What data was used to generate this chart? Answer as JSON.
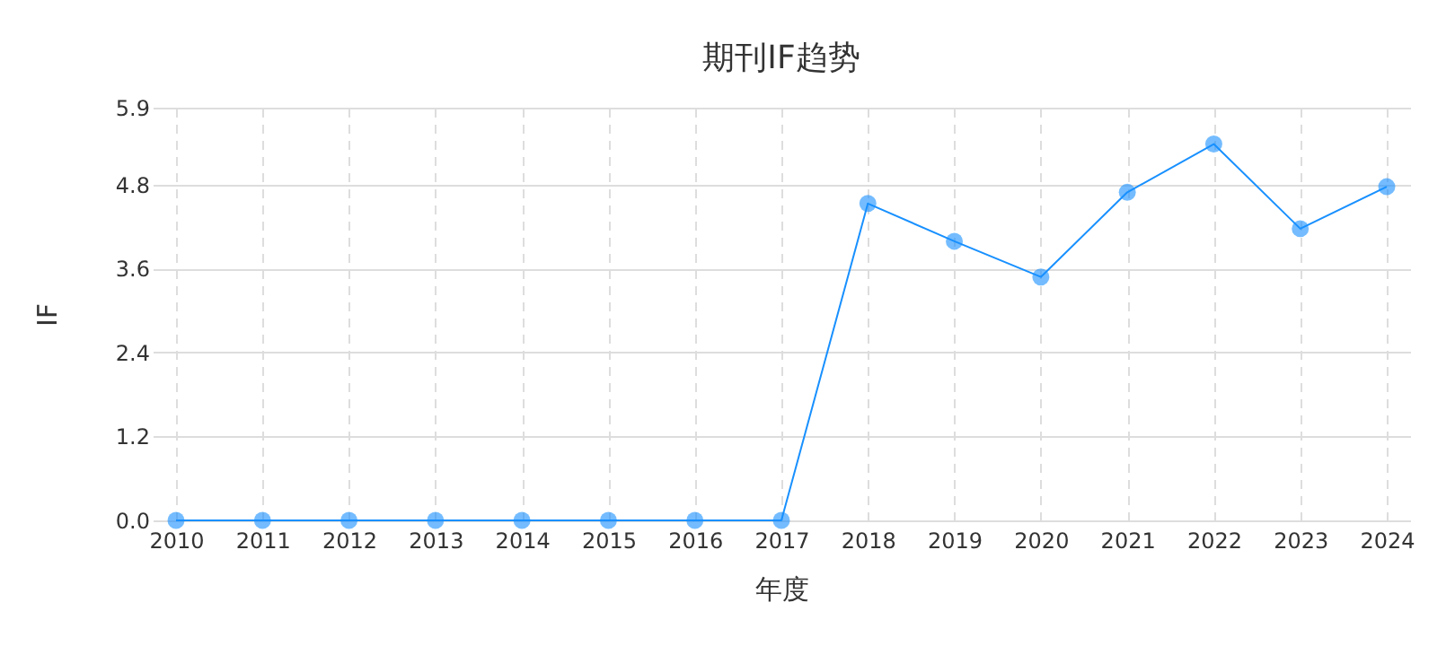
{
  "chart_data": {
    "type": "line",
    "title": "期刊IF趋势",
    "xlabel": "年度",
    "ylabel": "IF",
    "categories": [
      "2010",
      "2011",
      "2012",
      "2013",
      "2014",
      "2015",
      "2016",
      "2017",
      "2018",
      "2019",
      "2020",
      "2021",
      "2022",
      "2023",
      "2024"
    ],
    "series": [
      {
        "color": "#1890ff",
        "values": [
          0,
          0,
          0,
          0,
          0,
          0,
          0,
          0,
          4.53,
          3.99,
          3.48,
          4.69,
          5.38,
          4.17,
          4.77
        ]
      }
    ],
    "ylim": [
      0,
      5.9
    ],
    "yticks": [
      {
        "value": 0,
        "label": "0.0"
      },
      {
        "value": 1.2,
        "label": "1.2"
      },
      {
        "value": 2.4,
        "label": "2.4"
      },
      {
        "value": 3.6,
        "label": "3.6"
      },
      {
        "value": 4.8,
        "label": "4.8"
      },
      {
        "value": 5.9,
        "label": "5.9"
      }
    ],
    "grid": true,
    "marker": "circle",
    "line_style": "solid"
  }
}
